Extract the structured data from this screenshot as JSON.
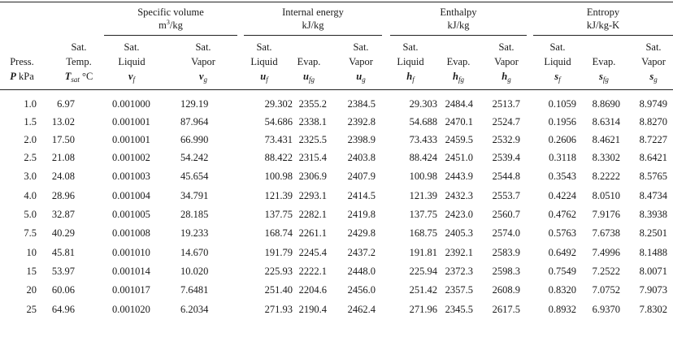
{
  "groups": [
    {
      "line1": "Specific volume",
      "line2_base": "m",
      "line2_sup": "3",
      "line2_rest": "/kg"
    },
    {
      "line1": "Internal energy",
      "line2_base": "kJ/kg",
      "line2_sup": "",
      "line2_rest": ""
    },
    {
      "line1": "Enthalpy",
      "line2_base": "kJ/kg",
      "line2_sup": "",
      "line2_rest": ""
    },
    {
      "line1": "Entropy",
      "line2_base": "kJ/kg-K",
      "line2_sup": "",
      "line2_rest": ""
    }
  ],
  "columns": [
    {
      "l1": "",
      "l2": "Press.",
      "sym": "P",
      "sub": "",
      "unit": " kPa"
    },
    {
      "l1": "Sat.",
      "l2": "Temp.",
      "sym": "T",
      "sub": "sat",
      "unit": " °C"
    },
    {
      "l1": "Sat.",
      "l2": "Liquid",
      "sym": "v",
      "sub": "f",
      "unit": ""
    },
    {
      "l1": "Sat.",
      "l2": "Vapor",
      "sym": "v",
      "sub": "g",
      "unit": ""
    },
    {
      "l1": "Sat.",
      "l2": "Liquid",
      "sym": "u",
      "sub": "f",
      "unit": ""
    },
    {
      "l1": "",
      "l2": "Evap.",
      "sym": "u",
      "sub": "fg",
      "unit": ""
    },
    {
      "l1": "Sat.",
      "l2": "Vapor",
      "sym": "u",
      "sub": "g",
      "unit": ""
    },
    {
      "l1": "Sat.",
      "l2": "Liquid",
      "sym": "h",
      "sub": "f",
      "unit": ""
    },
    {
      "l1": "",
      "l2": "Evap.",
      "sym": "h",
      "sub": "fg",
      "unit": ""
    },
    {
      "l1": "Sat.",
      "l2": "Vapor",
      "sym": "h",
      "sub": "g",
      "unit": ""
    },
    {
      "l1": "Sat.",
      "l2": "Liquid",
      "sym": "s",
      "sub": "f",
      "unit": ""
    },
    {
      "l1": "",
      "l2": "Evap.",
      "sym": "s",
      "sub": "fg",
      "unit": ""
    },
    {
      "l1": "Sat.",
      "l2": "Vapor",
      "sym": "s",
      "sub": "g",
      "unit": ""
    }
  ],
  "rows": [
    [
      "1.0",
      "6.97",
      "0.001000",
      "129.19",
      "29.302",
      "2355.2",
      "2384.5",
      "29.303",
      "2484.4",
      "2513.7",
      "0.1059",
      "8.8690",
      "8.9749"
    ],
    [
      "1.5",
      "13.02",
      "0.001001",
      "87.964",
      "54.686",
      "2338.1",
      "2392.8",
      "54.688",
      "2470.1",
      "2524.7",
      "0.1956",
      "8.6314",
      "8.8270"
    ],
    [
      "2.0",
      "17.50",
      "0.001001",
      "66.990",
      "73.431",
      "2325.5",
      "2398.9",
      "73.433",
      "2459.5",
      "2532.9",
      "0.2606",
      "8.4621",
      "8.7227"
    ],
    [
      "2.5",
      "21.08",
      "0.001002",
      "54.242",
      "88.422",
      "2315.4",
      "2403.8",
      "88.424",
      "2451.0",
      "2539.4",
      "0.3118",
      "8.3302",
      "8.6421"
    ],
    [
      "3.0",
      "24.08",
      "0.001003",
      "45.654",
      "100.98",
      "2306.9",
      "2407.9",
      "100.98",
      "2443.9",
      "2544.8",
      "0.3543",
      "8.2222",
      "8.5765"
    ],
    [
      "4.0",
      "28.96",
      "0.001004",
      "34.791",
      "121.39",
      "2293.1",
      "2414.5",
      "121.39",
      "2432.3",
      "2553.7",
      "0.4224",
      "8.0510",
      "8.4734"
    ],
    [
      "5.0",
      "32.87",
      "0.001005",
      "28.185",
      "137.75",
      "2282.1",
      "2419.8",
      "137.75",
      "2423.0",
      "2560.7",
      "0.4762",
      "7.9176",
      "8.3938"
    ],
    [
      "7.5",
      "40.29",
      "0.001008",
      "19.233",
      "168.74",
      "2261.1",
      "2429.8",
      "168.75",
      "2405.3",
      "2574.0",
      "0.5763",
      "7.6738",
      "8.2501"
    ],
    [
      "10",
      "45.81",
      "0.001010",
      "14.670",
      "191.79",
      "2245.4",
      "2437.2",
      "191.81",
      "2392.1",
      "2583.9",
      "0.6492",
      "7.4996",
      "8.1488"
    ],
    [
      "15",
      "53.97",
      "0.001014",
      "10.020",
      "225.93",
      "2222.1",
      "2448.0",
      "225.94",
      "2372.3",
      "2598.3",
      "0.7549",
      "7.2522",
      "8.0071"
    ],
    [
      "20",
      "60.06",
      "0.001017",
      "7.6481",
      "251.40",
      "2204.6",
      "2456.0",
      "251.42",
      "2357.5",
      "2608.9",
      "0.8320",
      "7.0752",
      "7.9073"
    ],
    [
      "25",
      "64.96",
      "0.001020",
      "6.2034",
      "271.93",
      "2190.4",
      "2462.4",
      "271.96",
      "2345.5",
      "2617.5",
      "0.8932",
      "6.9370",
      "7.8302"
    ]
  ]
}
